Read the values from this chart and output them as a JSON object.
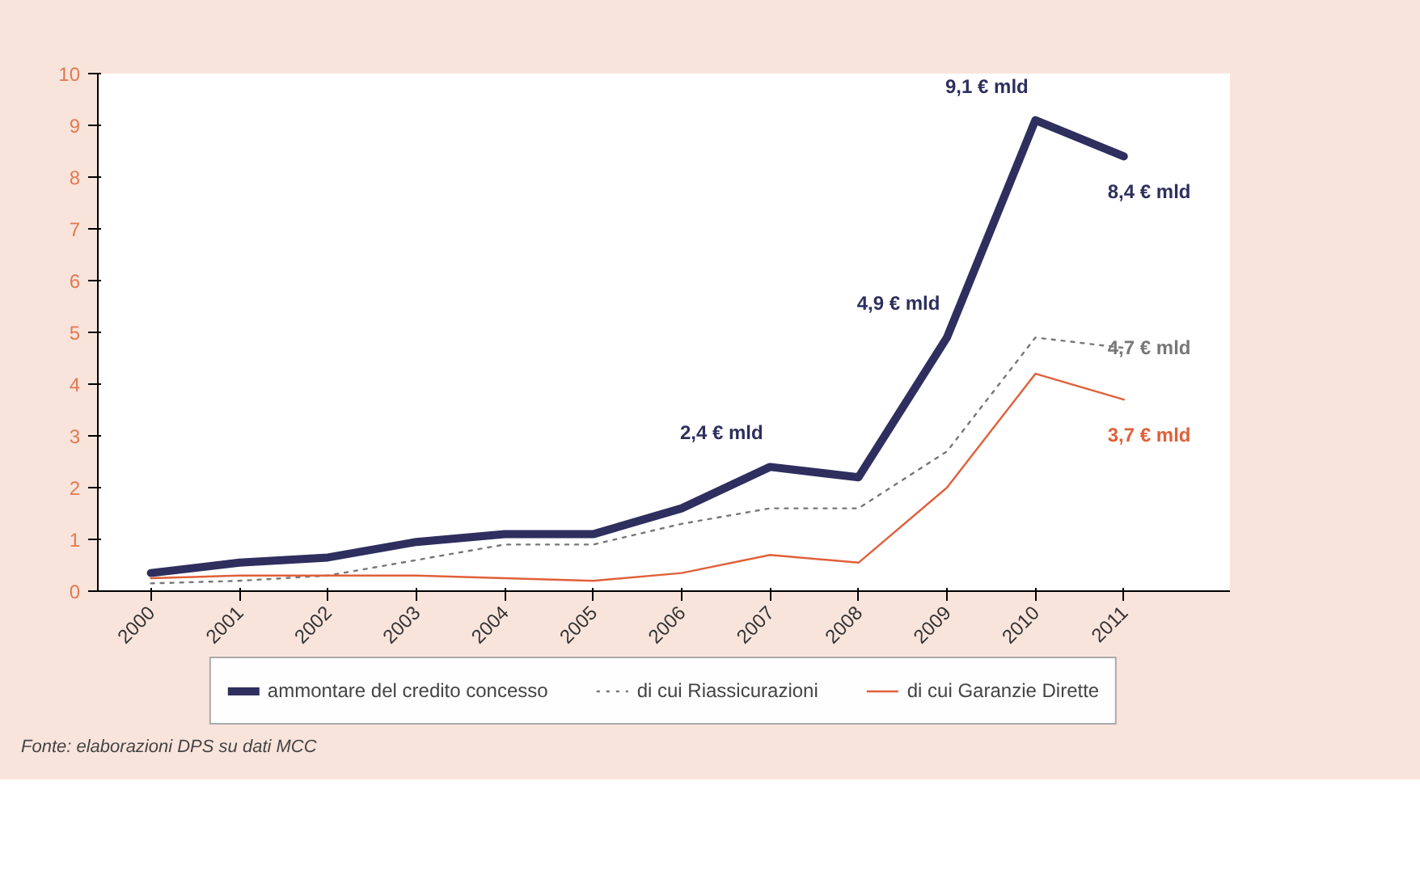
{
  "chart_data": {
    "type": "line",
    "categories": [
      "2000",
      "2001",
      "2002",
      "2003",
      "2004",
      "2005",
      "2006",
      "2007",
      "2008",
      "2009",
      "2010",
      "2011"
    ],
    "ylim": [
      0,
      10
    ],
    "yticks": [
      0,
      1,
      2,
      3,
      4,
      5,
      6,
      7,
      8,
      9,
      10
    ],
    "grid": false,
    "legend": "bottom",
    "marker": "none",
    "series": [
      {
        "name": "ammontare del credito concesso",
        "color": "#2e2f5e",
        "line_style": "solid",
        "values": [
          0.35,
          0.55,
          0.65,
          0.95,
          1.1,
          1.1,
          1.6,
          2.4,
          2.2,
          4.9,
          9.1,
          8.4
        ],
        "value_labels": [
          null,
          null,
          null,
          null,
          null,
          null,
          null,
          "2,4 € mld",
          null,
          "4,9 € mld",
          "9,1 € mld",
          "8,4 € mld"
        ]
      },
      {
        "name": "di cui Riassicurazioni",
        "color": "#777777",
        "line_style": "dotted",
        "values": [
          0.15,
          0.2,
          0.3,
          0.6,
          0.9,
          0.9,
          1.3,
          1.6,
          1.6,
          2.7,
          4.9,
          4.7
        ],
        "value_labels": [
          null,
          null,
          null,
          null,
          null,
          null,
          null,
          null,
          null,
          null,
          null,
          "4,7 € mld"
        ]
      },
      {
        "name": "di cui Garanzie Dirette",
        "color": "#e0603a",
        "line_style": "solid",
        "values": [
          0.25,
          0.3,
          0.3,
          0.3,
          0.25,
          0.2,
          0.35,
          0.7,
          0.55,
          2.0,
          4.2,
          3.7
        ],
        "value_labels": [
          null,
          null,
          null,
          null,
          null,
          null,
          null,
          null,
          null,
          null,
          null,
          "3,7 € mld"
        ]
      }
    ],
    "annotations": [
      "Fonte: elaborazioni DPS su dati MCC"
    ]
  }
}
